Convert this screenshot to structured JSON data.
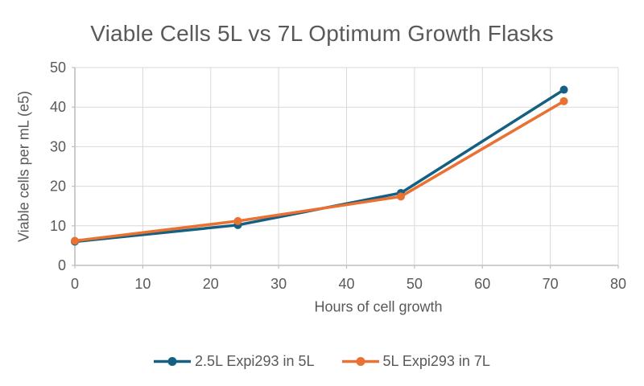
{
  "chart_data": {
    "type": "line",
    "title": "Viable Cells 5L vs 7L Optimum Growth Flasks",
    "xlabel": "Hours of cell growth",
    "ylabel": "Viable cells per mL (e5)",
    "x": [
      0,
      24,
      48,
      72
    ],
    "series": [
      {
        "name": "2.5L Expi293 in 5L",
        "color": "#156082",
        "values": [
          6.0,
          10.2,
          18.3,
          44.4
        ]
      },
      {
        "name": "5L Expi293 in 7L",
        "color": "#E97132",
        "values": [
          6.2,
          11.2,
          17.4,
          41.5
        ]
      }
    ],
    "xlim": [
      0,
      80
    ],
    "ylim": [
      0,
      50
    ],
    "xticks": [
      0,
      10,
      20,
      30,
      40,
      50,
      60,
      70,
      80
    ],
    "yticks": [
      0,
      10,
      20,
      30,
      40,
      50
    ],
    "grid": true,
    "marker": "circle",
    "legend_position": "bottom"
  },
  "colors": {
    "background": "#FFFFFF",
    "text": "#595959",
    "gridline": "#D9D9D9",
    "axis": "#BFBFBF"
  }
}
